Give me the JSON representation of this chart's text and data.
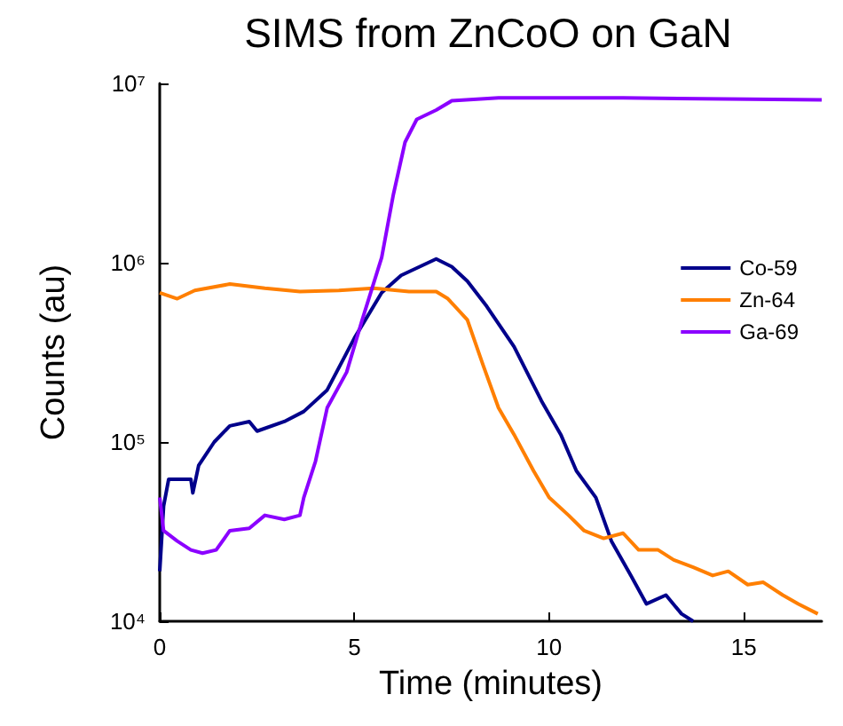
{
  "chart_data": {
    "type": "line",
    "title": "SIMS from ZnCoO on GaN",
    "xlabel": "Time (minutes)",
    "ylabel": "Counts (au)",
    "xlim": [
      0,
      17
    ],
    "xticks": [
      0,
      5,
      10,
      15
    ],
    "ylim": [
      10000,
      10000000
    ],
    "yticks": [
      {
        "value": 10000,
        "label": "10⁴"
      },
      {
        "value": 100000,
        "label": "10⁵"
      },
      {
        "value": 1000000,
        "label": "10⁶"
      },
      {
        "value": 10000000,
        "label": "10⁷"
      }
    ],
    "log": "y",
    "grid": false,
    "legend": "right",
    "marker": "none",
    "line_style": "solid",
    "series": [
      {
        "name": "Co-59",
        "color": "#00008b",
        "x": [
          0,
          0.1,
          0.23,
          0.8,
          0.85,
          1.0,
          1.4,
          1.8,
          2.3,
          2.5,
          3.2,
          3.7,
          4.3,
          5.0,
          5.7,
          6.2,
          7.1,
          7.5,
          7.9,
          8.4,
          9.1,
          9.8,
          10.3,
          10.7,
          11.2,
          11.6,
          12.1,
          12.5,
          13.0,
          13.4,
          13.7
        ],
        "values": [
          19000,
          44000,
          62000,
          62000,
          52000,
          74000,
          100000,
          123000,
          130000,
          115000,
          130000,
          148000,
          195000,
          380000,
          680000,
          850000,
          1050000,
          950000,
          790000,
          570000,
          340000,
          170000,
          110000,
          69000,
          49000,
          28000,
          18000,
          12500,
          14000,
          11000,
          10000
        ]
      },
      {
        "name": "Zn-64",
        "color": "#ff7f00",
        "x": [
          0,
          0.45,
          0.9,
          1.8,
          2.7,
          3.6,
          4.6,
          5.5,
          6.4,
          7.1,
          7.4,
          7.9,
          8.3,
          8.7,
          9.1,
          9.6,
          10.0,
          10.5,
          10.9,
          11.4,
          11.9,
          12.3,
          12.8,
          13.2,
          13.7,
          14.2,
          14.6,
          15.1,
          15.5,
          16.0,
          16.4,
          16.9
        ],
        "values": [
          680000,
          630000,
          700000,
          760000,
          720000,
          690000,
          700000,
          720000,
          690000,
          690000,
          630000,
          480000,
          270000,
          155000,
          110000,
          69000,
          49000,
          39000,
          32000,
          29000,
          31000,
          25000,
          25000,
          22000,
          20000,
          18000,
          19000,
          16000,
          16500,
          14000,
          12500,
          11000
        ]
      },
      {
        "name": "Ga-69",
        "color": "#8b00ff",
        "x": [
          0,
          0.1,
          0.45,
          0.8,
          1.1,
          1.45,
          1.8,
          2.3,
          2.7,
          3.2,
          3.6,
          3.7,
          4.0,
          4.3,
          4.8,
          5.2,
          5.7,
          6.0,
          6.3,
          6.6,
          7.1,
          7.5,
          8.7,
          11.9,
          17
        ],
        "values": [
          49000,
          32000,
          28000,
          25000,
          24000,
          25000,
          32000,
          33000,
          39000,
          37000,
          39000,
          49000,
          78000,
          155000,
          245000,
          480000,
          1070000,
          2400000,
          4700000,
          6300000,
          7100000,
          8000000,
          8300000,
          8300000,
          8100000
        ]
      }
    ]
  }
}
